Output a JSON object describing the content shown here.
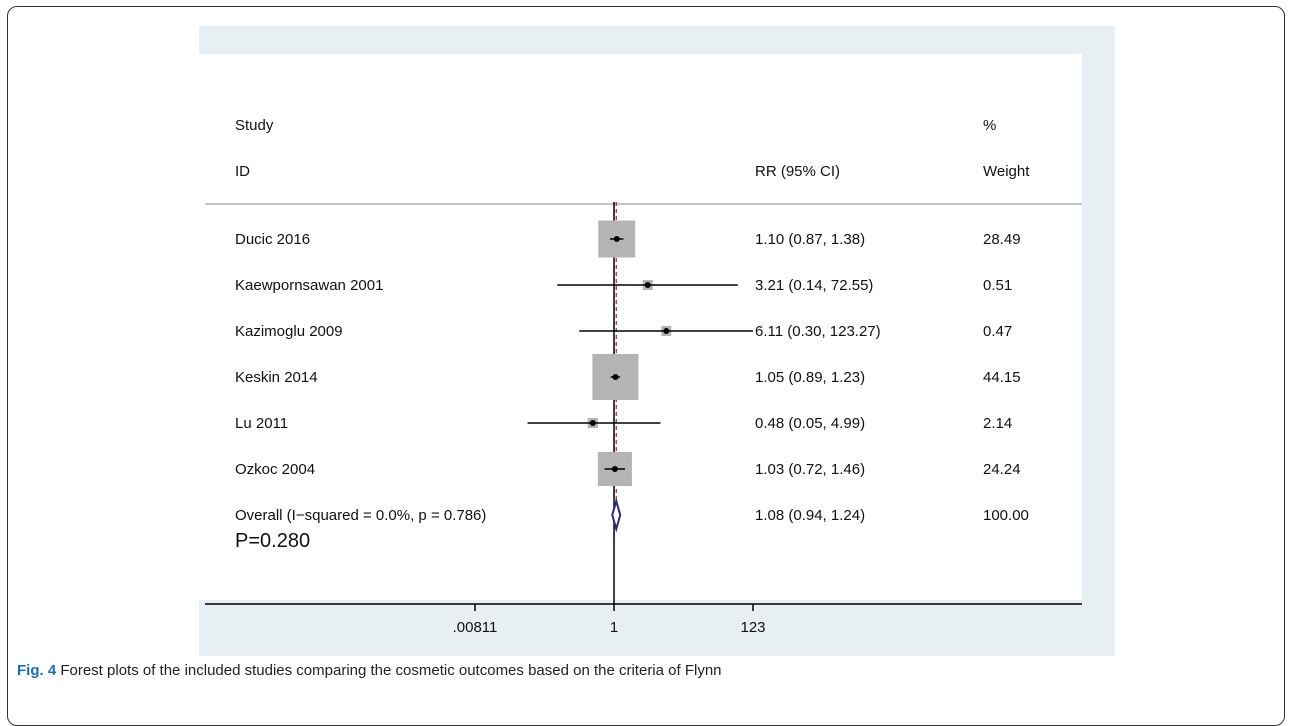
{
  "caption": {
    "label": "Fig. 4",
    "text": " Forest plots of the included studies comparing the cosmetic outcomes based on the criteria of Flynn"
  },
  "annotation": "P=0.280",
  "colors": {
    "background": "#e7eff3",
    "marker_box": "#b4b4b4",
    "line": "#000000",
    "null_line": "#000000",
    "overall_line": "#9b2b2b",
    "diamond": "#2a2f6b",
    "caption_label": "#1f6fa8"
  },
  "chart_data": {
    "type": "forest",
    "scale": "log",
    "header": {
      "col1_top": "Study",
      "col1_bottom": "ID",
      "col2": "RR (95% CI)",
      "col3_top": "%",
      "col3_bottom": "Weight"
    },
    "x_ticks": [
      {
        "value": 0.00811,
        "label": ".00811"
      },
      {
        "value": 1,
        "label": "1"
      },
      {
        "value": 123,
        "label": "123"
      }
    ],
    "xlim": [
      0.00811,
      123
    ],
    "null_value": 1,
    "studies": [
      {
        "name": "Ducic 2016",
        "rr": 1.1,
        "lo": 0.87,
        "hi": 1.38,
        "ci_text": "1.10 (0.87, 1.38)",
        "weight": 28.49,
        "weight_text": "28.49"
      },
      {
        "name": "Kaewpornsawan 2001",
        "rr": 3.21,
        "lo": 0.14,
        "hi": 72.55,
        "ci_text": "3.21 (0.14, 72.55)",
        "weight": 0.51,
        "weight_text": "0.51"
      },
      {
        "name": "Kazimoglu 2009",
        "rr": 6.11,
        "lo": 0.3,
        "hi": 123.27,
        "ci_text": "6.11 (0.30, 123.27)",
        "weight": 0.47,
        "weight_text": "0.47"
      },
      {
        "name": "Keskin 2014",
        "rr": 1.05,
        "lo": 0.89,
        "hi": 1.23,
        "ci_text": "1.05 (0.89, 1.23)",
        "weight": 44.15,
        "weight_text": "44.15"
      },
      {
        "name": "Lu 2011",
        "rr": 0.48,
        "lo": 0.05,
        "hi": 4.99,
        "ci_text": "0.48 (0.05, 4.99)",
        "weight": 2.14,
        "weight_text": "2.14"
      },
      {
        "name": "Ozkoc 2004",
        "rr": 1.03,
        "lo": 0.72,
        "hi": 1.46,
        "ci_text": "1.03 (0.72, 1.46)",
        "weight": 24.24,
        "weight_text": "24.24"
      }
    ],
    "overall": {
      "name": "Overall  (I−squared = 0.0%, p = 0.786)",
      "rr": 1.08,
      "lo": 0.94,
      "hi": 1.24,
      "ci_text": "1.08 (0.94, 1.24)",
      "weight_text": "100.00"
    }
  }
}
